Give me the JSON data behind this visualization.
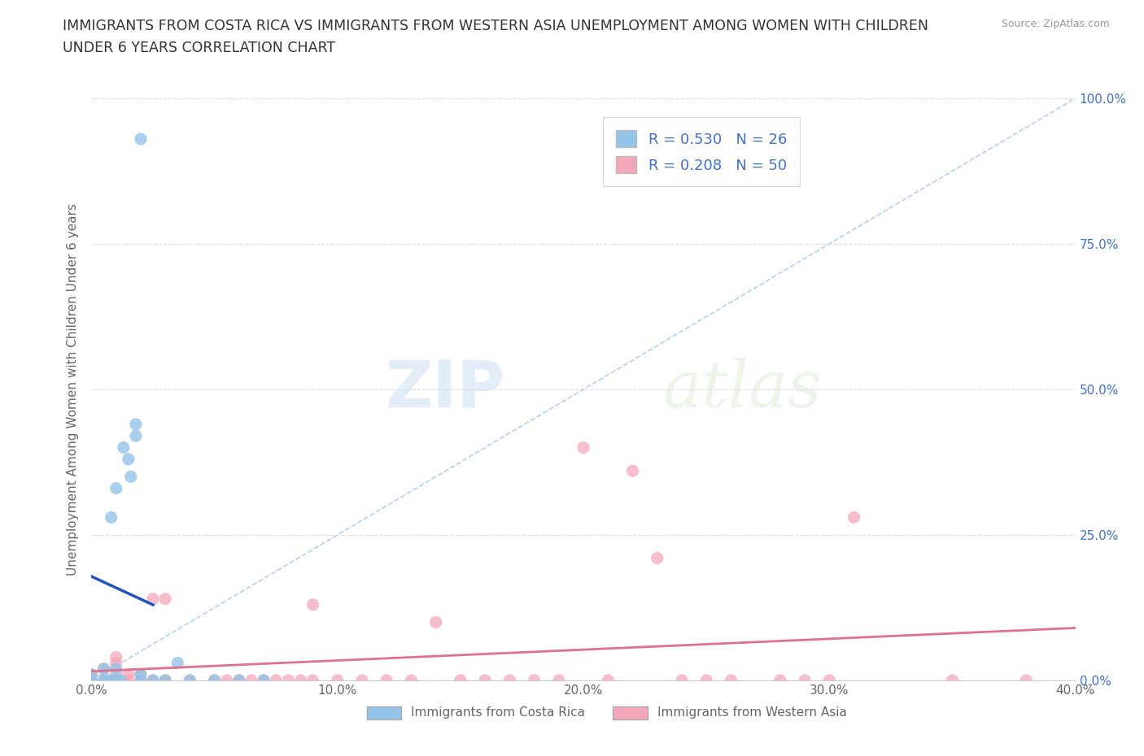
{
  "title": "IMMIGRANTS FROM COSTA RICA VS IMMIGRANTS FROM WESTERN ASIA UNEMPLOYMENT AMONG WOMEN WITH CHILDREN\nUNDER 6 YEARS CORRELATION CHART",
  "source": "Source: ZipAtlas.com",
  "ylabel": "Unemployment Among Women with Children Under 6 years",
  "xlim": [
    0.0,
    0.4
  ],
  "ylim": [
    0.0,
    1.0
  ],
  "xticklabels": [
    "0.0%",
    "10.0%",
    "20.0%",
    "30.0%",
    "40.0%"
  ],
  "ytick_positions": [
    0.0,
    0.25,
    0.5,
    0.75,
    1.0
  ],
  "right_yticklabels": [
    "0.0%",
    "25.0%",
    "50.0%",
    "75.0%",
    "100.0%"
  ],
  "costa_rica_color": "#94c4e8",
  "western_asia_color": "#f4a7b9",
  "costa_rica_line_color": "#2255bb",
  "western_asia_line_color": "#e07090",
  "diagonal_color": "#aaccee",
  "costa_rica_R": 0.53,
  "costa_rica_N": 26,
  "western_asia_R": 0.208,
  "western_asia_N": 50,
  "watermark_zip": "ZIP",
  "watermark_atlas": "atlas",
  "title_color": "#333333",
  "axis_color": "#666666",
  "grid_color": "#dddddd",
  "legend_edge_color": "#cccccc",
  "right_tick_color": "#4472c4",
  "costa_rica_points": [
    [
      0.0,
      0.0
    ],
    [
      0.0,
      0.01
    ],
    [
      0.005,
      0.0
    ],
    [
      0.005,
      0.02
    ],
    [
      0.007,
      0.0
    ],
    [
      0.008,
      0.0
    ],
    [
      0.008,
      0.28
    ],
    [
      0.01,
      0.0
    ],
    [
      0.01,
      0.02
    ],
    [
      0.01,
      0.33
    ],
    [
      0.012,
      0.0
    ],
    [
      0.013,
      0.4
    ],
    [
      0.015,
      0.38
    ],
    [
      0.016,
      0.35
    ],
    [
      0.018,
      0.42
    ],
    [
      0.018,
      0.44
    ],
    [
      0.02,
      0.0
    ],
    [
      0.02,
      0.01
    ],
    [
      0.025,
      0.0
    ],
    [
      0.03,
      0.0
    ],
    [
      0.035,
      0.03
    ],
    [
      0.04,
      0.0
    ],
    [
      0.05,
      0.0
    ],
    [
      0.06,
      0.0
    ],
    [
      0.07,
      0.0
    ],
    [
      0.02,
      0.93
    ]
  ],
  "western_asia_points": [
    [
      0.0,
      0.0
    ],
    [
      0.0,
      0.01
    ],
    [
      0.005,
      0.0
    ],
    [
      0.005,
      0.02
    ],
    [
      0.01,
      0.0
    ],
    [
      0.01,
      0.01
    ],
    [
      0.01,
      0.03
    ],
    [
      0.01,
      0.04
    ],
    [
      0.015,
      0.0
    ],
    [
      0.015,
      0.01
    ],
    [
      0.02,
      0.0
    ],
    [
      0.02,
      0.01
    ],
    [
      0.025,
      0.0
    ],
    [
      0.025,
      0.14
    ],
    [
      0.03,
      0.0
    ],
    [
      0.03,
      0.14
    ],
    [
      0.04,
      0.0
    ],
    [
      0.05,
      0.0
    ],
    [
      0.055,
      0.0
    ],
    [
      0.06,
      0.0
    ],
    [
      0.065,
      0.0
    ],
    [
      0.07,
      0.0
    ],
    [
      0.075,
      0.0
    ],
    [
      0.08,
      0.0
    ],
    [
      0.085,
      0.0
    ],
    [
      0.09,
      0.0
    ],
    [
      0.09,
      0.13
    ],
    [
      0.1,
      0.0
    ],
    [
      0.11,
      0.0
    ],
    [
      0.12,
      0.0
    ],
    [
      0.13,
      0.0
    ],
    [
      0.14,
      0.1
    ],
    [
      0.15,
      0.0
    ],
    [
      0.16,
      0.0
    ],
    [
      0.17,
      0.0
    ],
    [
      0.18,
      0.0
    ],
    [
      0.19,
      0.0
    ],
    [
      0.2,
      0.4
    ],
    [
      0.21,
      0.0
    ],
    [
      0.22,
      0.36
    ],
    [
      0.23,
      0.21
    ],
    [
      0.24,
      0.0
    ],
    [
      0.25,
      0.0
    ],
    [
      0.26,
      0.0
    ],
    [
      0.28,
      0.0
    ],
    [
      0.29,
      0.0
    ],
    [
      0.3,
      0.0
    ],
    [
      0.31,
      0.28
    ],
    [
      0.35,
      0.0
    ],
    [
      0.38,
      0.0
    ]
  ]
}
